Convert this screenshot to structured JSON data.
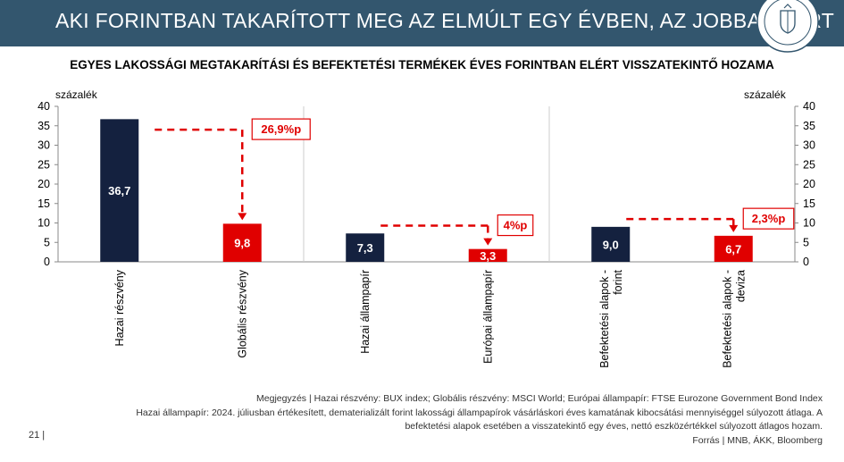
{
  "header": {
    "title": "AKI FORINTBAN TAKARÍTOTT MEG AZ ELMÚLT EGY ÉVBEN, AZ JOBBAN JÁRT",
    "logo_text": "MAGYAR NEMZETI BANK"
  },
  "colors": {
    "banner": "#33566e",
    "domestic": "#14213f",
    "foreign": "#e00000",
    "annotation": "#e00000"
  },
  "chart_data": {
    "type": "bar",
    "title": "EGYES LAKOSSÁGI MEGTAKARÍTÁSI ÉS BEFEKTETÉSI TERMÉKEK ÉVES FORINTBAN ELÉRT VISSZATEKINTŐ HOZAMA",
    "ylabel": "százalék",
    "ylabel_right": "százalék",
    "ylim": [
      0,
      40
    ],
    "yticks": [
      0,
      5,
      10,
      15,
      20,
      25,
      30,
      35,
      40
    ],
    "grid": false,
    "categories": [
      "Hazai részvény",
      "Globális részvény",
      "Hazai állampapír",
      "Európai állampapír",
      "Befektetési alapok - forint",
      "Befektetési alapok - deviza"
    ],
    "values": [
      36.7,
      9.8,
      7.3,
      3.3,
      9.0,
      6.7
    ],
    "value_labels": [
      "36,7",
      "9,8",
      "7,3",
      "3,3",
      "9,0",
      "6,7"
    ],
    "bar_groups": [
      "domestic",
      "foreign",
      "domestic",
      "foreign",
      "domestic",
      "foreign"
    ],
    "annotations": [
      {
        "label": "26,9%p",
        "from": "Hazai részvény",
        "to": "Globális részvény"
      },
      {
        "label": "4%p",
        "from": "Hazai állampapír",
        "to": "Európai állampapír"
      },
      {
        "label": "2,3%p",
        "from": "Befektetési alapok - forint",
        "to": "Befektetési alapok - deviza"
      }
    ]
  },
  "footer": {
    "note1": "Megjegyzés | Hazai részvény: BUX index; Globális részvény: MSCI World; Európai állampapír: FTSE Eurozone Government Bond Index",
    "note2": "Hazai állampapír: 2024. júliusban értékesített, dematerializált forint lakossági állampapírok vásárláskori éves kamatának kibocsátási mennyiséggel súlyozott átlaga. A",
    "note3": "befektetési alapok esetében a visszatekintő egy éves, nettó eszközértékkel súlyozott átlagos hozam.",
    "source": "Forrás | MNB, ÁKK, Bloomberg",
    "page_number": "21 |"
  }
}
